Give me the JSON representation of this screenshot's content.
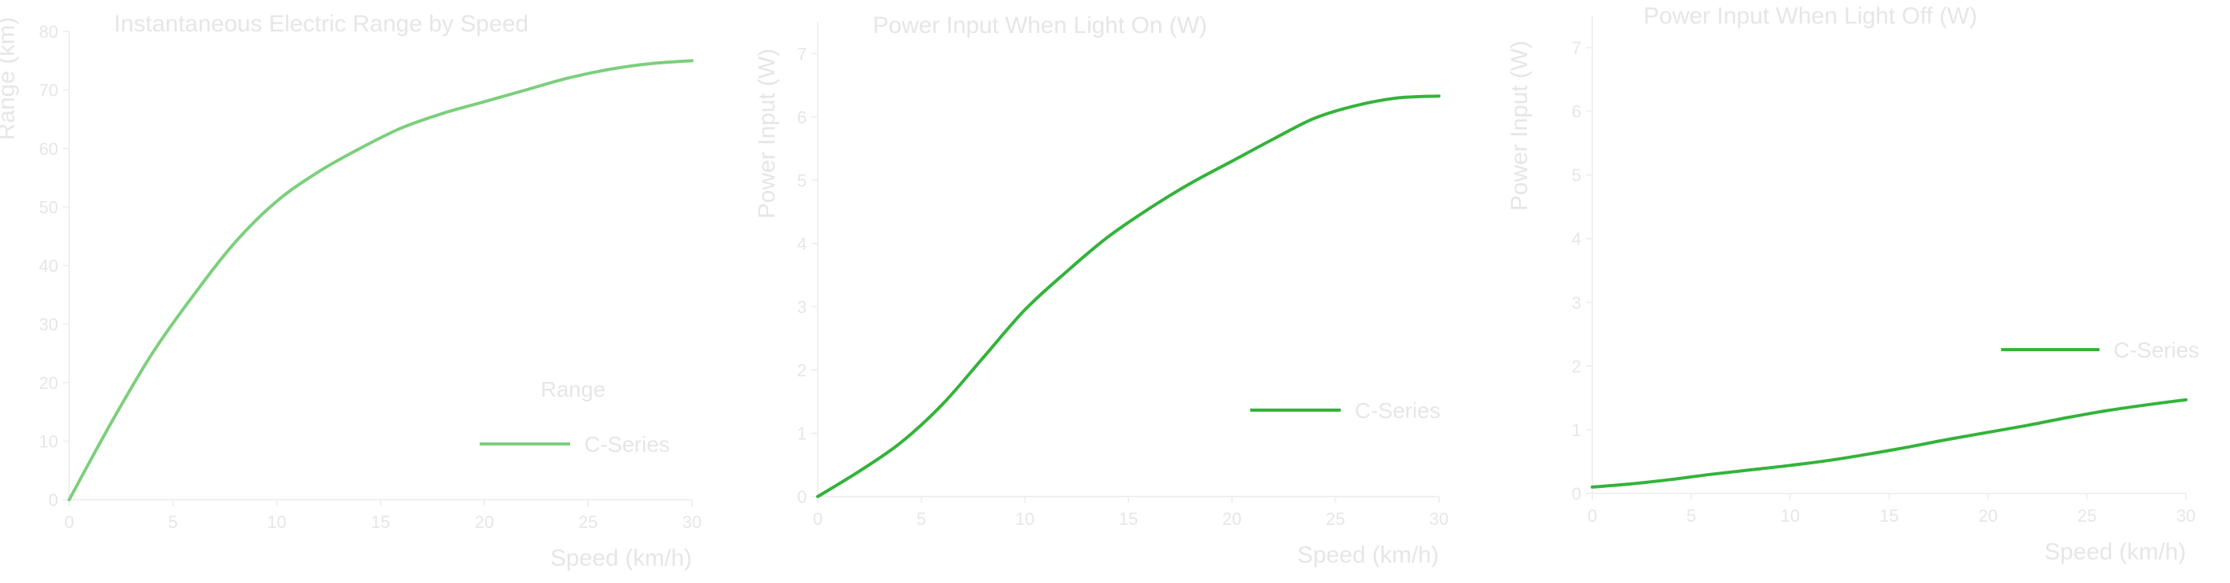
{
  "chart_data": [
    {
      "type": "line",
      "title": "Instantaneous Electric Range by Speed",
      "xlabel": "Speed (km/h)",
      "ylabel": "Range (km)",
      "x": [
        0,
        5,
        10,
        15,
        20,
        25,
        30
      ],
      "xlim": [
        0,
        30
      ],
      "ylim": [
        0,
        80
      ],
      "xticks": [
        0,
        5,
        10,
        15,
        20,
        25,
        30
      ],
      "yticks": [
        0,
        10,
        20,
        30,
        40,
        50,
        60,
        70,
        80
      ],
      "grid": false,
      "legend_placement": "bottom-right",
      "legend_title": "Range",
      "series": [
        {
          "name": "C-Series",
          "color": "#7ccf7c",
          "x": [
            0,
            2,
            4,
            6,
            8,
            10,
            12,
            14,
            16,
            18,
            20,
            22,
            24,
            26,
            28,
            30
          ],
          "values": [
            0,
            13,
            25,
            35,
            44,
            51,
            56,
            60,
            63.5,
            66,
            68,
            70,
            72,
            73.5,
            74.5,
            75
          ]
        }
      ]
    },
    {
      "type": "line",
      "title": "Power Input When Light On (W)",
      "xlabel": "Speed (km/h)",
      "ylabel": "Power Input (W)",
      "xlim": [
        0,
        30
      ],
      "ylim": [
        0,
        7.5
      ],
      "xticks": [
        0,
        5,
        10,
        15,
        20,
        25,
        30
      ],
      "yticks": [
        0,
        1,
        2,
        3,
        4,
        5,
        6,
        7
      ],
      "grid": false,
      "legend_placement": "center-right",
      "series": [
        {
          "name": "C-Series",
          "color": "#33b33a",
          "x": [
            0,
            2,
            4,
            6,
            8,
            10,
            12,
            14,
            16,
            18,
            20,
            22,
            24,
            26,
            28,
            30
          ],
          "values": [
            0,
            0.4,
            0.85,
            1.45,
            2.2,
            2.95,
            3.55,
            4.1,
            4.55,
            4.95,
            5.3,
            5.65,
            5.98,
            6.18,
            6.3,
            6.33
          ]
        }
      ]
    },
    {
      "type": "line",
      "title": "Power Input When Light Off (W)",
      "xlabel": "Speed (km/h)",
      "ylabel": "Power Input (W)",
      "xlim": [
        0,
        30
      ],
      "ylim": [
        0,
        7.5
      ],
      "xticks": [
        0,
        5,
        10,
        15,
        20,
        25,
        30
      ],
      "yticks": [
        0,
        1,
        2,
        3,
        4,
        5,
        6,
        7
      ],
      "grid": false,
      "legend_placement": "center-right",
      "series": [
        {
          "name": "C-Series",
          "color": "#33b33a",
          "x": [
            0,
            2,
            4,
            6,
            8,
            10,
            12,
            14,
            16,
            18,
            20,
            22,
            24,
            26,
            28,
            30
          ],
          "values": [
            0.1,
            0.15,
            0.22,
            0.3,
            0.37,
            0.44,
            0.52,
            0.62,
            0.73,
            0.85,
            0.96,
            1.07,
            1.19,
            1.3,
            1.39,
            1.47
          ]
        }
      ]
    }
  ]
}
